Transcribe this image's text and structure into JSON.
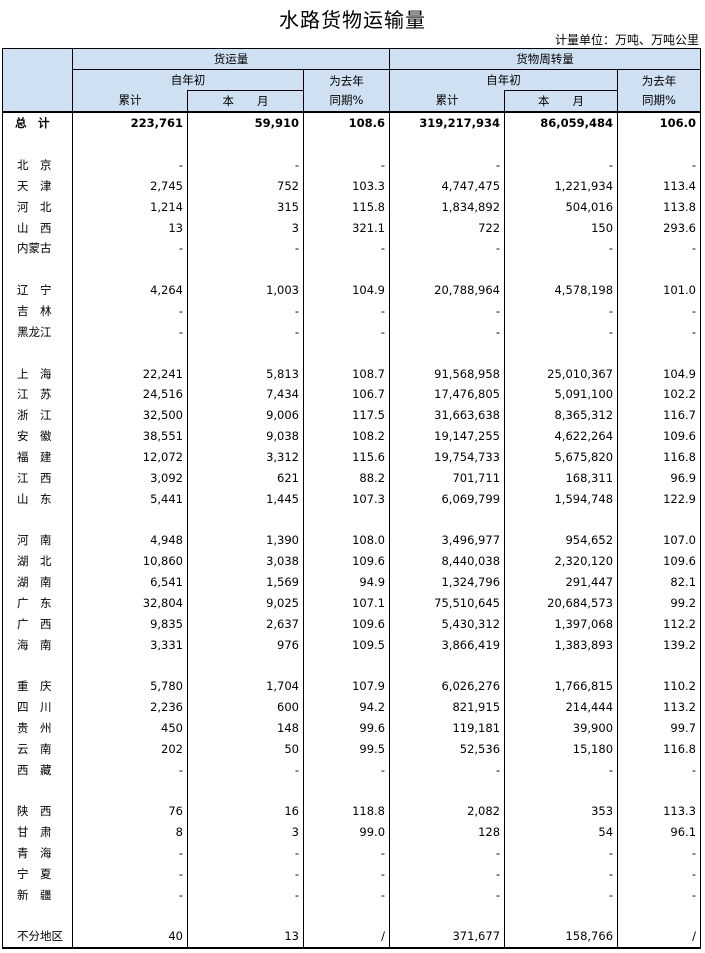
{
  "title": "水路货物运输量",
  "unit": "计量单位：万吨、万吨公里",
  "headers": {
    "freight_volume": "货运量",
    "turnover": "货物周转量",
    "ytd_line1": "自年初",
    "ytd_line2": "累计",
    "month": "本　　月",
    "yoy_line1": "为去年",
    "yoy_line2": "同期%"
  },
  "rows": [
    {
      "name": "总　计",
      "v": [
        "223,761",
        "59,910",
        "108.6",
        "319,217,934",
        "86,059,484",
        "106.0"
      ],
      "total": true
    },
    {
      "name": "",
      "v": [
        "",
        "",
        "",
        "",
        "",
        ""
      ]
    },
    {
      "name": "北　京",
      "v": [
        "-",
        "-",
        "-",
        "-",
        "-",
        "-"
      ]
    },
    {
      "name": "天　津",
      "v": [
        "2,745",
        "752",
        "103.3",
        "4,747,475",
        "1,221,934",
        "113.4"
      ]
    },
    {
      "name": "河　北",
      "v": [
        "1,214",
        "315",
        "115.8",
        "1,834,892",
        "504,016",
        "113.8"
      ]
    },
    {
      "name": "山　西",
      "v": [
        "13",
        "3",
        "321.1",
        "722",
        "150",
        "293.6"
      ]
    },
    {
      "name": "内蒙古",
      "v": [
        "-",
        "-",
        "-",
        "-",
        "-",
        "-"
      ]
    },
    {
      "name": "",
      "v": [
        "",
        "",
        "",
        "",
        "",
        ""
      ]
    },
    {
      "name": "辽　宁",
      "v": [
        "4,264",
        "1,003",
        "104.9",
        "20,788,964",
        "4,578,198",
        "101.0"
      ]
    },
    {
      "name": "吉　林",
      "v": [
        "-",
        "-",
        "-",
        "-",
        "-",
        "-"
      ]
    },
    {
      "name": "黑龙江",
      "v": [
        "-",
        "-",
        "-",
        "-",
        "-",
        "-"
      ]
    },
    {
      "name": "",
      "v": [
        "",
        "",
        "",
        "",
        "",
        ""
      ]
    },
    {
      "name": "上　海",
      "v": [
        "22,241",
        "5,813",
        "108.7",
        "91,568,958",
        "25,010,367",
        "104.9"
      ]
    },
    {
      "name": "江　苏",
      "v": [
        "24,516",
        "7,434",
        "106.7",
        "17,476,805",
        "5,091,100",
        "102.2"
      ]
    },
    {
      "name": "浙　江",
      "v": [
        "32,500",
        "9,006",
        "117.5",
        "31,663,638",
        "8,365,312",
        "116.7"
      ]
    },
    {
      "name": "安　徽",
      "v": [
        "38,551",
        "9,038",
        "108.2",
        "19,147,255",
        "4,622,264",
        "109.6"
      ]
    },
    {
      "name": "福　建",
      "v": [
        "12,072",
        "3,312",
        "115.6",
        "19,754,733",
        "5,675,820",
        "116.8"
      ]
    },
    {
      "name": "江　西",
      "v": [
        "3,092",
        "621",
        "88.2",
        "701,711",
        "168,311",
        "96.9"
      ]
    },
    {
      "name": "山　东",
      "v": [
        "5,441",
        "1,445",
        "107.3",
        "6,069,799",
        "1,594,748",
        "122.9"
      ]
    },
    {
      "name": "",
      "v": [
        "",
        "",
        "",
        "",
        "",
        ""
      ]
    },
    {
      "name": "河　南",
      "v": [
        "4,948",
        "1,390",
        "108.0",
        "3,496,977",
        "954,652",
        "107.0"
      ]
    },
    {
      "name": "湖　北",
      "v": [
        "10,860",
        "3,038",
        "109.6",
        "8,440,038",
        "2,320,120",
        "109.6"
      ]
    },
    {
      "name": "湖　南",
      "v": [
        "6,541",
        "1,569",
        "94.9",
        "1,324,796",
        "291,447",
        "82.1"
      ]
    },
    {
      "name": "广　东",
      "v": [
        "32,804",
        "9,025",
        "107.1",
        "75,510,645",
        "20,684,573",
        "99.2"
      ]
    },
    {
      "name": "广　西",
      "v": [
        "9,835",
        "2,637",
        "109.6",
        "5,430,312",
        "1,397,068",
        "112.2"
      ]
    },
    {
      "name": "海　南",
      "v": [
        "3,331",
        "976",
        "109.5",
        "3,866,419",
        "1,383,893",
        "139.2"
      ]
    },
    {
      "name": "",
      "v": [
        "",
        "",
        "",
        "",
        "",
        ""
      ]
    },
    {
      "name": "重　庆",
      "v": [
        "5,780",
        "1,704",
        "107.9",
        "6,026,276",
        "1,766,815",
        "110.2"
      ]
    },
    {
      "name": "四　川",
      "v": [
        "2,236",
        "600",
        "94.2",
        "821,915",
        "214,444",
        "113.2"
      ]
    },
    {
      "name": "贵　州",
      "v": [
        "450",
        "148",
        "99.6",
        "119,181",
        "39,900",
        "99.7"
      ]
    },
    {
      "name": "云　南",
      "v": [
        "202",
        "50",
        "99.5",
        "52,536",
        "15,180",
        "116.8"
      ]
    },
    {
      "name": "西　藏",
      "v": [
        "-",
        "-",
        "-",
        "-",
        "-",
        "-"
      ]
    },
    {
      "name": "",
      "v": [
        "",
        "",
        "",
        "",
        "",
        ""
      ]
    },
    {
      "name": "陕　西",
      "v": [
        "76",
        "16",
        "118.8",
        "2,082",
        "353",
        "113.3"
      ]
    },
    {
      "name": "甘　肃",
      "v": [
        "8",
        "3",
        "99.0",
        "128",
        "54",
        "96.1"
      ]
    },
    {
      "name": "青　海",
      "v": [
        "-",
        "-",
        "-",
        "-",
        "-",
        "-"
      ]
    },
    {
      "name": "宁　夏",
      "v": [
        "-",
        "-",
        "-",
        "-",
        "-",
        "-"
      ]
    },
    {
      "name": "新　疆",
      "v": [
        "-",
        "-",
        "-",
        "-",
        "-",
        "-"
      ]
    },
    {
      "name": "",
      "v": [
        "",
        "",
        "",
        "",
        "",
        ""
      ]
    },
    {
      "name": "不分地区",
      "v": [
        "40",
        "13",
        "/",
        "371,677",
        "158,766",
        "/"
      ],
      "last": true
    }
  ]
}
